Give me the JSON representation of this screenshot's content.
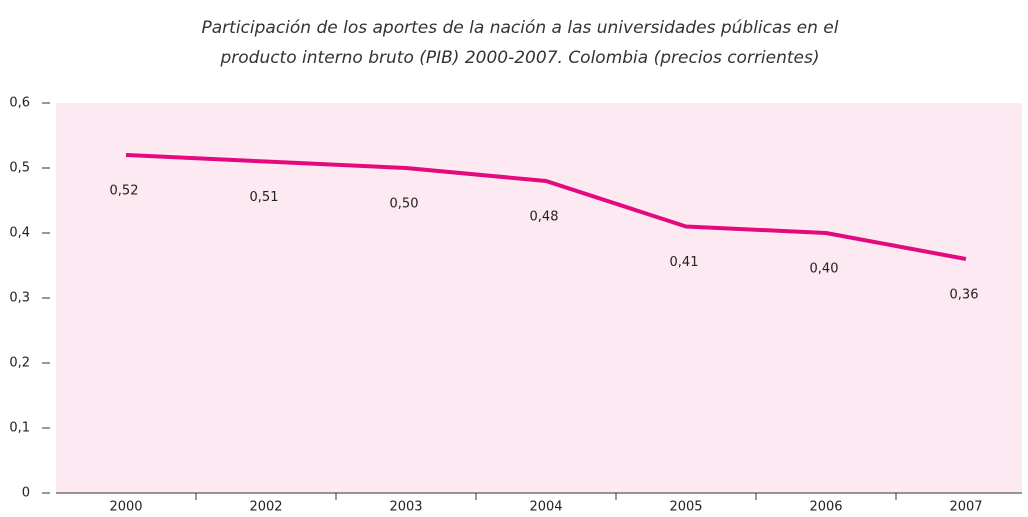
{
  "chart_data": {
    "type": "line",
    "title": [
      "Participación de los aportes de la nación a las universidades públicas en el",
      "producto interno bruto (PIB) 2000-2007. Colombia (precios corrientes)"
    ],
    "categories": [
      "2000",
      "2002",
      "2003",
      "2004",
      "2005",
      "2006",
      "2007"
    ],
    "values": [
      0.52,
      0.51,
      0.5,
      0.48,
      0.41,
      0.4,
      0.36
    ],
    "value_labels": [
      "0,52",
      "0,51",
      "0,50",
      "0,48",
      "0,41",
      "0,40",
      "0,36"
    ],
    "color": "#e4097f",
    "ylim": [
      0,
      0.6
    ],
    "yticks": [
      0,
      {
        "value": 0.1,
        "label": "0,1"
      },
      {
        "value": 0.2,
        "label": "0,2"
      },
      {
        "value": 0.3,
        "label": "0,3"
      },
      {
        "value": 0.4,
        "label": "0,4"
      },
      {
        "value": 0.5,
        "label": "0,5"
      },
      {
        "value": 0.6,
        "label": "0,6"
      }
    ],
    "grid": false
  }
}
